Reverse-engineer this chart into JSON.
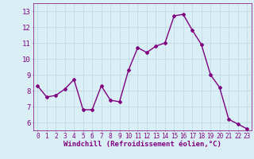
{
  "x": [
    0,
    1,
    2,
    3,
    4,
    5,
    6,
    7,
    8,
    9,
    10,
    11,
    12,
    13,
    14,
    15,
    16,
    17,
    18,
    19,
    20,
    21,
    22,
    23
  ],
  "y": [
    8.3,
    7.6,
    7.7,
    8.1,
    8.7,
    6.8,
    6.8,
    8.3,
    7.4,
    7.3,
    9.3,
    10.7,
    10.4,
    10.8,
    11.0,
    12.7,
    12.8,
    11.8,
    10.9,
    9.0,
    8.2,
    6.2,
    5.9,
    5.6
  ],
  "line_color": "#800080",
  "marker": "D",
  "marker_size": 2.0,
  "linewidth": 1.0,
  "bg_color": "#d9eff5",
  "grid_color": "#b8d8e0",
  "xlabel": "Windchill (Refroidissement éolien,°C)",
  "xlabel_color": "#800080",
  "ylabel_ticks": [
    6,
    7,
    8,
    9,
    10,
    11,
    12,
    13
  ],
  "xtick_labels": [
    "0",
    "1",
    "2",
    "3",
    "4",
    "5",
    "6",
    "7",
    "8",
    "9",
    "10",
    "11",
    "12",
    "13",
    "14",
    "15",
    "16",
    "17",
    "18",
    "19",
    "20",
    "21",
    "22",
    "23"
  ],
  "ylim": [
    5.5,
    13.5
  ],
  "xlim": [
    -0.5,
    23.5
  ],
  "tick_color": "#800080",
  "tick_label_color": "#800080",
  "xtick_fontsize": 5.5,
  "ytick_fontsize": 6.5,
  "xlabel_fontsize": 6.5
}
